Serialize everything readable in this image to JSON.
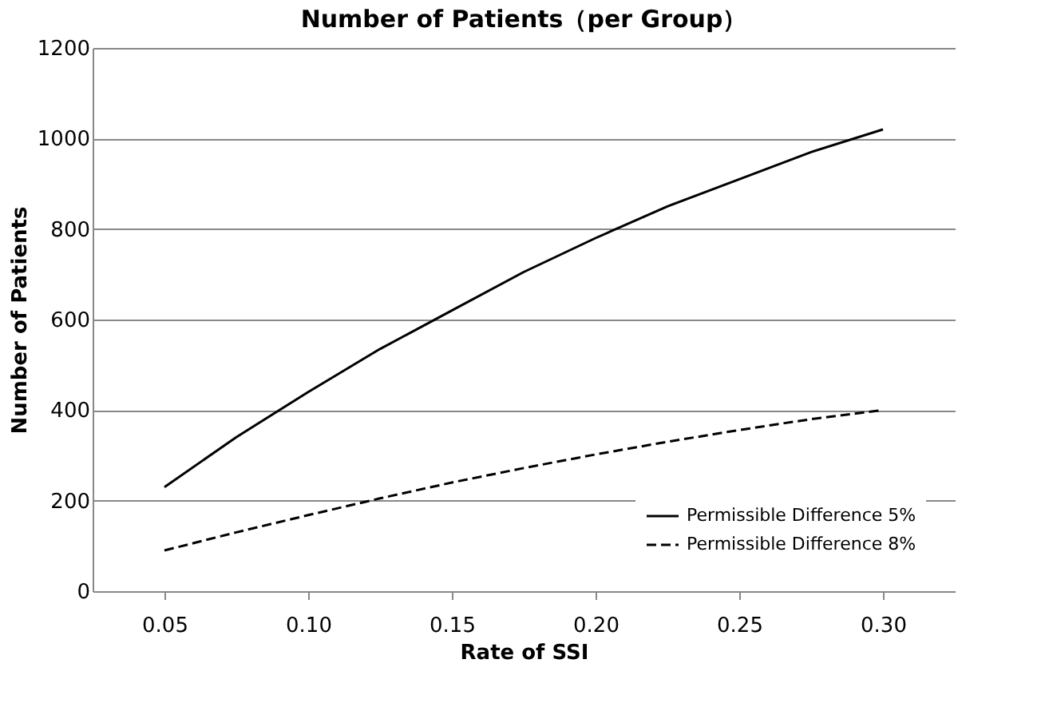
{
  "chart_data": {
    "type": "line",
    "title": "Number of Patients（per Group）",
    "xlabel": "Rate of SSI",
    "ylabel": "Number of Patients",
    "x": [
      0.05,
      0.075,
      0.1,
      0.125,
      0.15,
      0.175,
      0.2,
      0.225,
      0.25,
      0.275,
      0.3
    ],
    "series": [
      {
        "name": "Permissible Difference 5%",
        "color": "#000000",
        "line_style": "solid",
        "values": [
          230,
          340,
          440,
          535,
          620,
          705,
          780,
          850,
          910,
          970,
          1020
        ]
      },
      {
        "name": "Permissible Difference 8%",
        "color": "#000000",
        "line_style": "dashed",
        "values": [
          90,
          130,
          168,
          205,
          240,
          272,
          302,
          330,
          356,
          380,
          400
        ]
      }
    ],
    "xlim": [
      0.025,
      0.325
    ],
    "xticks": [
      0.05,
      {
        "value": 0.1,
        "label": "0.10"
      },
      0.15,
      {
        "value": 0.2,
        "label": "0.20"
      },
      0.25,
      {
        "value": 0.3,
        "label": "0.30"
      }
    ],
    "ylim": [
      0,
      1200
    ],
    "yticks": [
      0,
      200,
      400,
      600,
      800,
      1000,
      1200
    ],
    "grid": "y",
    "legend": "bottom right",
    "marker": "none"
  }
}
